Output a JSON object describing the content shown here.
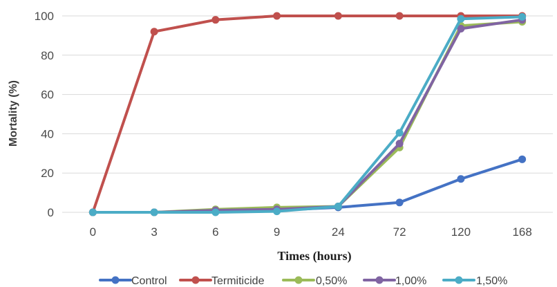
{
  "chart_data": {
    "type": "line",
    "title": "",
    "xlabel": "Times (hours)",
    "ylabel": "Mortality (%)",
    "categories": [
      "0",
      "3",
      "6",
      "9",
      "24",
      "72",
      "120",
      "168"
    ],
    "ylim": [
      0,
      100
    ],
    "yticks": [
      "0",
      "20",
      "40",
      "60",
      "80",
      "100"
    ],
    "grid": true,
    "legend_position": "bottom",
    "series": [
      {
        "name": "Control",
        "color": "#4472C4",
        "values": [
          0,
          0,
          0.5,
          1,
          2.5,
          5,
          17,
          27
        ]
      },
      {
        "name": "Termiticide",
        "color": "#C0504D",
        "values": [
          0,
          92,
          98,
          100,
          100,
          100,
          100,
          100
        ]
      },
      {
        "name": "0,50%",
        "color": "#9BBB59",
        "values": [
          0,
          0,
          1.5,
          2.5,
          3,
          33,
          95,
          97
        ]
      },
      {
        "name": "1,00%",
        "color": "#8064A2",
        "values": [
          0,
          0,
          1,
          1.5,
          3,
          35,
          93.5,
          98
        ]
      },
      {
        "name": "1,50%",
        "color": "#4BACC6",
        "values": [
          0,
          0,
          0,
          0.5,
          3,
          40.5,
          98.5,
          99.5
        ]
      }
    ]
  }
}
